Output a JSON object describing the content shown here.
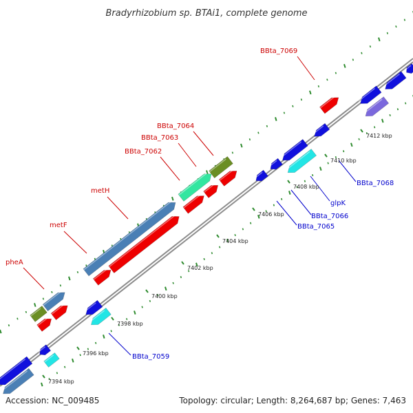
{
  "title": "Bradyrhizobium sp. BTAi1, complete genome",
  "footer": {
    "accession": "Accession: NC_009485",
    "summary": "Topology: circular; Length: 8,264,687 bp; Genes: 7,463"
  },
  "colors": {
    "backbone": "#8c8c8c",
    "tick": "#2e8b2e",
    "forward_label": "#cc0000",
    "reverse_label": "#0000cc"
  },
  "ticks": [
    {
      "label": "7394 kbp",
      "kbp": 7394
    },
    {
      "label": "7396 kbp",
      "kbp": 7396
    },
    {
      "label": "7398 kbp",
      "kbp": 7398
    },
    {
      "label": "7400 kbp",
      "kbp": 7400
    },
    {
      "label": "7402 kbp",
      "kbp": 7402
    },
    {
      "label": "7404 kbp",
      "kbp": 7404
    },
    {
      "label": "7406 kbp",
      "kbp": 7406
    },
    {
      "label": "7408 kbp",
      "kbp": 7408
    },
    {
      "label": "7410 kbp",
      "kbp": 7410
    },
    {
      "label": "7412 kbp",
      "kbp": 7412
    }
  ],
  "forward_labels": [
    "pheA",
    "metF",
    "metH",
    "BBta_7062",
    "BBta_7063",
    "BBta_7064",
    "BBta_7069"
  ],
  "reverse_labels": [
    "BBta_7059",
    "BBta_7065",
    "BBta_7066",
    "glpK",
    "BBta_7068"
  ]
}
